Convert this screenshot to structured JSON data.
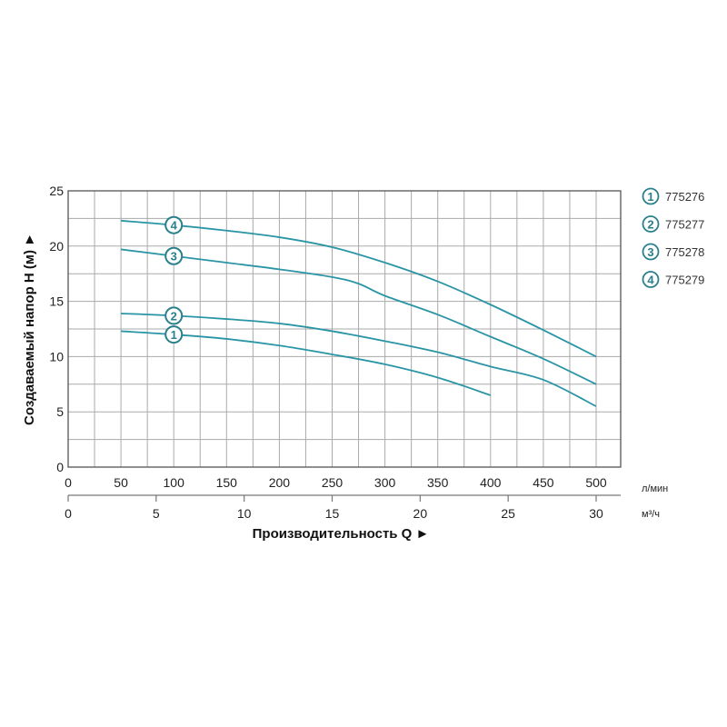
{
  "chart_data": {
    "type": "line",
    "title": "",
    "xlabel": "Производительность Q ►",
    "ylabel": "Создаваемый напор H (м) ►",
    "x_unit_primary": "л/мин",
    "x_unit_secondary": "м³/ч",
    "xlim": [
      0,
      523
    ],
    "ylim": [
      0,
      25
    ],
    "x_ticks": [
      0,
      50,
      100,
      150,
      200,
      250,
      300,
      350,
      400,
      450,
      500
    ],
    "x2_ticks": [
      0,
      5,
      10,
      15,
      20,
      25,
      30
    ],
    "y_ticks": [
      0,
      5,
      10,
      15,
      20,
      25
    ],
    "grid": true,
    "legend_position": "right",
    "line_color": "#2a95a5",
    "series": [
      {
        "name": "775276",
        "marker": "1",
        "x": [
          50,
          100,
          150,
          200,
          250,
          300,
          350,
          400
        ],
        "y": [
          12.3,
          12.0,
          11.6,
          11.0,
          10.2,
          9.3,
          8.1,
          6.5
        ]
      },
      {
        "name": "775277",
        "marker": "2",
        "x": [
          50,
          100,
          150,
          200,
          250,
          300,
          350,
          400,
          450,
          500
        ],
        "y": [
          13.9,
          13.7,
          13.4,
          13.0,
          12.3,
          11.4,
          10.4,
          9.1,
          7.9,
          5.5
        ]
      },
      {
        "name": "775278",
        "marker": "3",
        "x": [
          50,
          100,
          150,
          200,
          250,
          275,
          300,
          350,
          400,
          450,
          500
        ],
        "y": [
          19.7,
          19.1,
          18.5,
          17.9,
          17.2,
          16.6,
          15.5,
          13.8,
          11.8,
          9.8,
          7.5
        ]
      },
      {
        "name": "775279",
        "marker": "4",
        "x": [
          50,
          100,
          150,
          200,
          250,
          300,
          350,
          400,
          450,
          500
        ],
        "y": [
          22.3,
          21.9,
          21.4,
          20.8,
          19.9,
          18.5,
          16.8,
          14.7,
          12.4,
          10.0
        ]
      }
    ]
  }
}
